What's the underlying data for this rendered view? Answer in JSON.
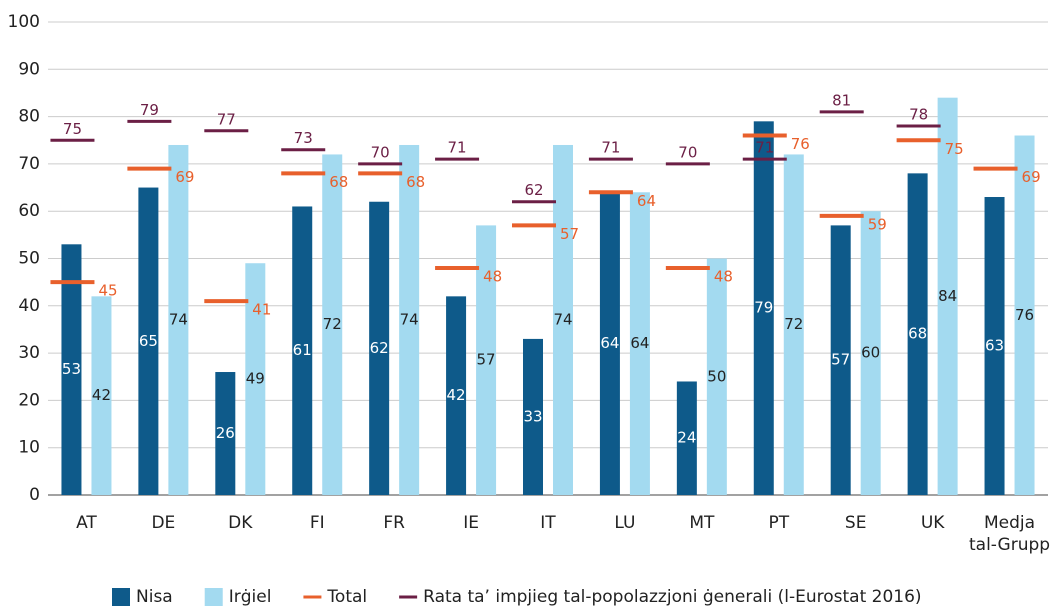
{
  "chart_data": {
    "type": "bar",
    "categories": [
      "AT",
      "DE",
      "DK",
      "FI",
      "FR",
      "IE",
      "IT",
      "LU",
      "MT",
      "PT",
      "SE",
      "UK",
      "Medja tal-Grupp"
    ],
    "series": [
      {
        "name": "Nisa",
        "color": "#0e5a8a",
        "values": [
          53,
          65,
          26,
          61,
          62,
          42,
          33,
          64,
          24,
          79,
          57,
          68,
          63
        ],
        "value_labels": [
          "53",
          "65",
          "26",
          "61",
          "62",
          "42",
          "33",
          "64",
          "(24)",
          "79",
          "57",
          "68",
          "63"
        ]
      },
      {
        "name": "Irġiel",
        "color": "#a3daf0",
        "values": [
          42,
          74,
          49,
          72,
          74,
          57,
          74,
          64,
          50,
          72,
          60,
          84,
          76
        ]
      },
      {
        "name": "Total",
        "color": "#e8602c",
        "marker": "dash",
        "values": [
          45,
          69,
          41,
          68,
          68,
          48,
          57,
          64,
          48,
          76,
          59,
          75,
          69
        ]
      },
      {
        "name": "Rata ta’ impjieg tal-popolazzjoni ġenerali (l-Eurostat 2016)",
        "color": "#6b1f45",
        "marker": "dash",
        "values": [
          75,
          79,
          77,
          73,
          70,
          71,
          62,
          71,
          70,
          71,
          81,
          78,
          null
        ]
      }
    ],
    "ylim": [
      0,
      100
    ],
    "yticks": [
      0,
      10,
      20,
      30,
      40,
      50,
      60,
      70,
      80,
      90,
      100
    ],
    "grid": true,
    "legend": "bottom"
  }
}
